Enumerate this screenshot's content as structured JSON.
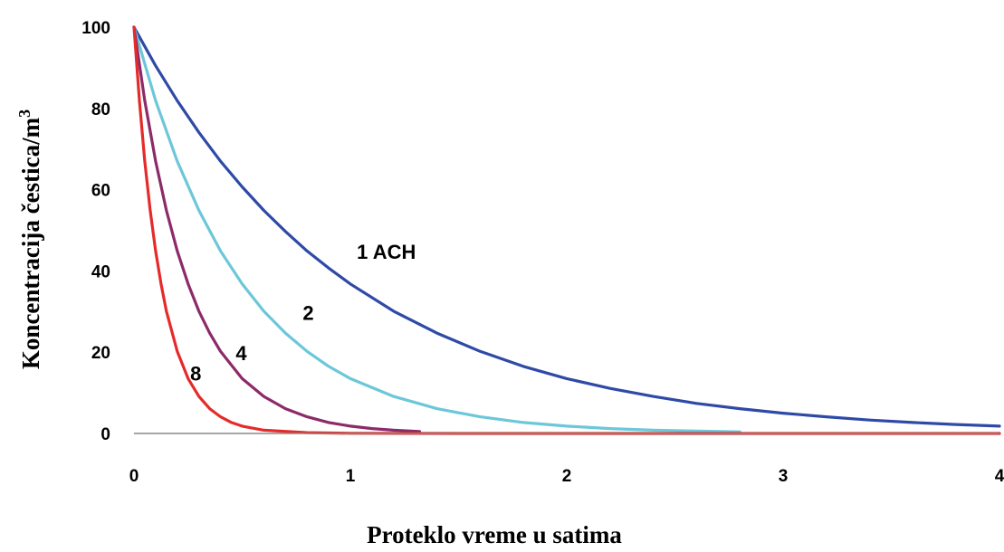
{
  "chart_data": {
    "type": "line",
    "xlabel": "Proteklo vreme u satima",
    "ylabel": "Koncentracija čestica/m",
    "ylabel_superscript": "3",
    "xlim": [
      0,
      4
    ],
    "ylim": [
      0,
      100
    ],
    "x_ticks": [
      "0",
      "1",
      "2",
      "3",
      "4"
    ],
    "y_ticks": [
      "0",
      "20",
      "40",
      "60",
      "80",
      "100"
    ],
    "grid": false,
    "series": [
      {
        "name": "1 ACH",
        "color": "#2e4aa6",
        "label_at": [
          1.03,
          43
        ],
        "x": [
          0,
          0.1,
          0.2,
          0.3,
          0.4,
          0.5,
          0.6,
          0.7,
          0.8,
          0.9,
          1.0,
          1.2,
          1.4,
          1.6,
          1.8,
          2.0,
          2.2,
          2.4,
          2.6,
          2.8,
          3.0,
          3.2,
          3.4,
          3.6,
          3.8,
          4.0
        ],
        "values": [
          100,
          90.5,
          81.9,
          74.1,
          67.0,
          60.7,
          54.9,
          49.7,
          44.9,
          40.7,
          36.8,
          30.1,
          24.7,
          20.2,
          16.5,
          13.5,
          11.1,
          9.1,
          7.4,
          6.1,
          5.0,
          4.1,
          3.3,
          2.7,
          2.2,
          1.8
        ]
      },
      {
        "name": "2",
        "color": "#6cc7d9",
        "label_at": [
          0.78,
          28
        ],
        "x": [
          0,
          0.1,
          0.2,
          0.3,
          0.4,
          0.5,
          0.6,
          0.7,
          0.8,
          0.9,
          1.0,
          1.2,
          1.4,
          1.6,
          1.8,
          2.0,
          2.2,
          2.4,
          2.6,
          2.8
        ],
        "values": [
          100,
          81.9,
          67.0,
          54.9,
          44.9,
          36.8,
          30.1,
          24.7,
          20.2,
          16.5,
          13.5,
          9.1,
          6.1,
          4.1,
          2.7,
          1.8,
          1.2,
          0.8,
          0.6,
          0.4
        ]
      },
      {
        "name": "4",
        "color": "#8c2a6a",
        "label_at": [
          0.47,
          18
        ],
        "x": [
          0,
          0.05,
          0.1,
          0.15,
          0.2,
          0.25,
          0.3,
          0.35,
          0.4,
          0.5,
          0.6,
          0.7,
          0.8,
          0.9,
          1.0,
          1.1,
          1.2,
          1.32
        ],
        "values": [
          100,
          81.9,
          67.0,
          54.9,
          44.9,
          36.8,
          30.1,
          24.7,
          20.2,
          13.5,
          9.1,
          6.1,
          4.1,
          2.7,
          1.8,
          1.2,
          0.8,
          0.5
        ]
      },
      {
        "name": "8",
        "color": "#e62a2a",
        "label_at": [
          0.26,
          13
        ],
        "x": [
          0,
          0.025,
          0.05,
          0.075,
          0.1,
          0.125,
          0.15,
          0.2,
          0.25,
          0.3,
          0.35,
          0.4,
          0.45,
          0.5,
          0.6,
          0.8,
          1.0,
          1.5,
          2.0,
          2.5,
          3.0,
          3.5,
          4.0
        ],
        "values": [
          100,
          81.9,
          67.0,
          54.9,
          44.9,
          36.8,
          30.1,
          20.2,
          13.5,
          9.1,
          6.1,
          4.1,
          2.7,
          1.8,
          0.8,
          0.2,
          0.05,
          0,
          0,
          0,
          0,
          0,
          0
        ]
      }
    ]
  }
}
